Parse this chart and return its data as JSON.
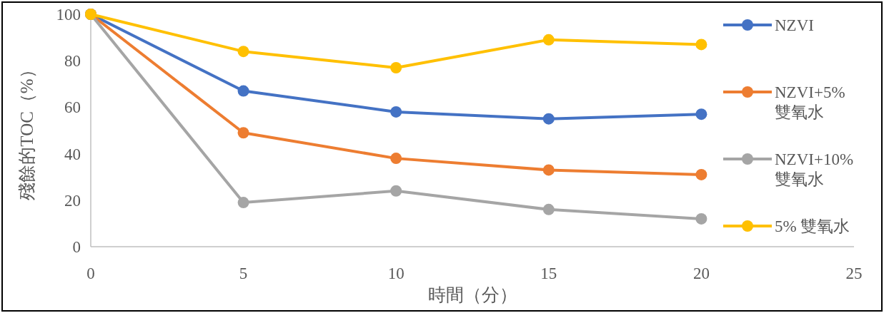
{
  "chart_data": {
    "type": "line",
    "xlabel": "時間（分）",
    "ylabel": "殘餘的TOC（%）",
    "x": [
      0,
      5,
      10,
      15,
      20
    ],
    "xlim": [
      0,
      25
    ],
    "xticks": [
      0,
      5,
      10,
      15,
      20,
      25
    ],
    "ylim": [
      0,
      100
    ],
    "yticks": [
      0,
      20,
      40,
      60,
      80,
      100
    ],
    "grid": false,
    "legend": "top right",
    "marker": "circle",
    "line_style": "solid",
    "series": [
      {
        "name": "NZVI",
        "color": "#4472c4",
        "values": [
          100,
          67,
          58,
          55,
          57
        ]
      },
      {
        "name": "NZVI+5% 雙氧水",
        "color": "#ed7d31",
        "values": [
          100,
          49,
          38,
          33,
          31
        ]
      },
      {
        "name": "NZVI+10% 雙氧水",
        "color": "#a5a5a5",
        "values": [
          100,
          19,
          24,
          16,
          12
        ]
      },
      {
        "name": "5% 雙氧水",
        "color": "#ffc000",
        "values": [
          100,
          84,
          77,
          89,
          87
        ]
      }
    ]
  }
}
